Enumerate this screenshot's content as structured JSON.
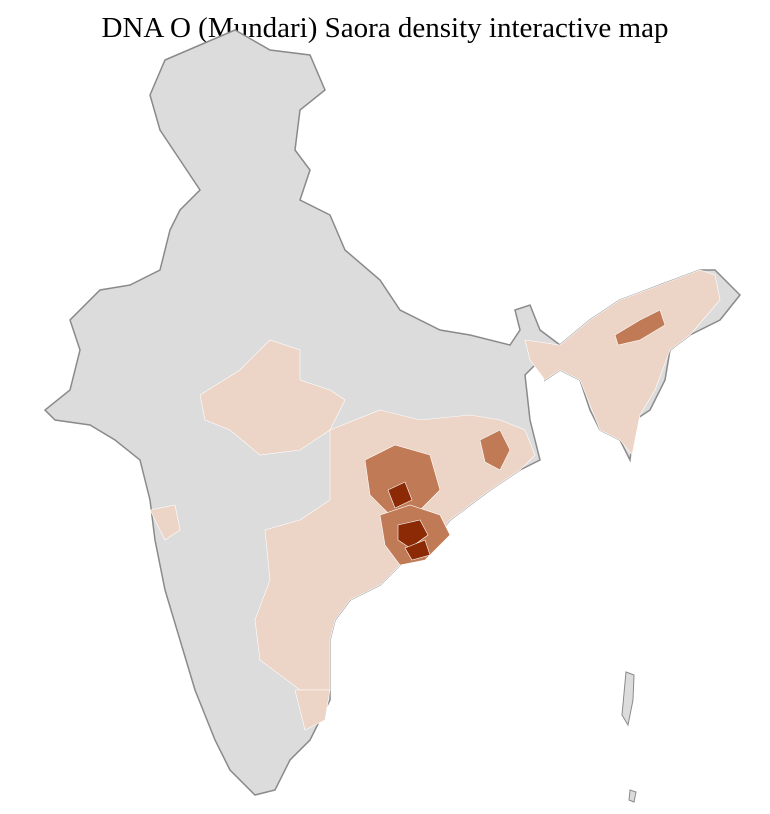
{
  "title": "DNA O (Mundari) Saora density interactive map",
  "colors": {
    "no_data": "#dcdcdc",
    "border_district": "#ffffff",
    "border_state": "#8a8a8a",
    "low": "#ecd4c6",
    "medium": "#c07a55",
    "high": "#8b2a05"
  }
}
